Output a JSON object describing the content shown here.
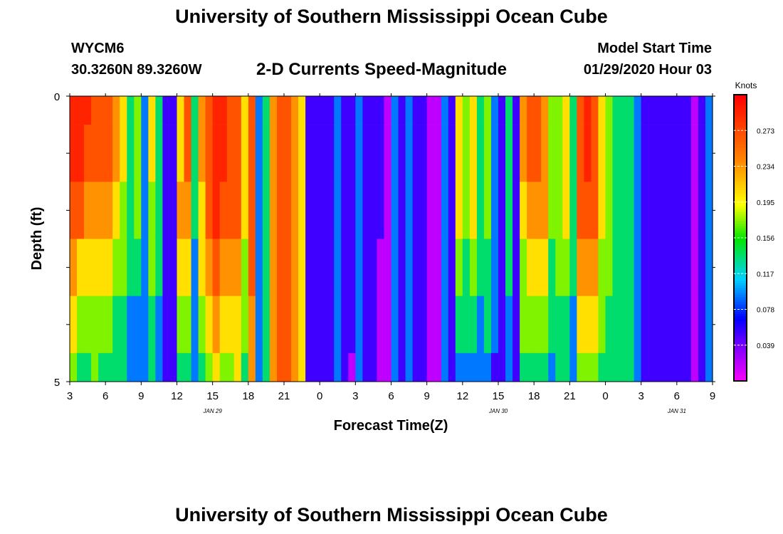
{
  "header": {
    "title": "University of Southern Mississippi Ocean Cube",
    "station": "WYCM6",
    "coords": "30.3260N 89.3260W",
    "subtitle": "2-D Currents Speed-Magnitude",
    "model_start_label": "Model Start Time",
    "model_start_value": "01/29/2020 Hour 03"
  },
  "footer": {
    "title": "University of Southern Mississippi Ocean Cube"
  },
  "chart_data": {
    "type": "heatmap",
    "title": "2-D Currents Speed-Magnitude",
    "xlabel": "Forecast Time(Z)",
    "ylabel": "Depth (ft)",
    "x_tick_labels": [
      "3",
      "6",
      "9",
      "12",
      "15",
      "18",
      "21",
      "0",
      "3",
      "6",
      "9",
      "12",
      "15",
      "18",
      "21",
      "0",
      "3",
      "6",
      "9"
    ],
    "date_labels": [
      "JAN 29",
      "JAN 30",
      "JAN 31"
    ],
    "y_tick_labels": [
      "0",
      "5"
    ],
    "ylim": [
      0,
      5
    ],
    "x_hours": [
      3,
      57
    ],
    "colorbar": {
      "label": "Knots",
      "tick_labels": [
        "0.273",
        "0.234",
        "0.195",
        "0.156",
        "0.117",
        "0.078",
        "0.039"
      ],
      "range": [
        0.0,
        0.312
      ]
    },
    "depths_ft": [
      0,
      0.5,
      1.5,
      2.5,
      3.5,
      4.5
    ],
    "column_levels": [
      [
        9,
        8,
        9,
        8,
        8,
        7,
        7,
        6,
        6,
        5,
        5,
        4
      ],
      [
        9,
        8,
        9,
        8,
        8,
        7,
        6,
        5,
        5,
        4,
        4,
        3
      ],
      [
        9,
        8,
        8,
        7,
        7,
        6,
        6,
        5,
        5,
        4,
        4,
        3
      ],
      [
        8,
        8,
        8,
        7,
        7,
        7,
        6,
        6,
        5,
        5,
        5,
        4
      ],
      [
        8,
        8,
        8,
        7,
        7,
        6,
        6,
        5,
        5,
        4,
        4,
        3
      ],
      [
        8,
        8,
        8,
        7,
        7,
        6,
        6,
        5,
        5,
        4,
        4,
        3
      ],
      [
        7,
        7,
        7,
        6,
        6,
        6,
        5,
        5,
        4,
        4,
        4,
        3
      ],
      [
        6,
        6,
        6,
        5,
        5,
        5,
        5,
        5,
        4,
        4,
        4,
        3
      ],
      [
        4,
        4,
        4,
        4,
        4,
        4,
        4,
        4,
        3,
        3,
        3,
        3
      ],
      [
        5,
        5,
        5,
        5,
        5,
        4,
        4,
        4,
        3,
        3,
        3,
        3
      ],
      [
        3,
        3,
        3,
        3,
        3,
        3,
        3,
        3,
        3,
        3,
        3,
        3
      ],
      [
        6,
        6,
        6,
        5,
        5,
        5,
        5,
        5,
        4,
        4,
        4,
        3
      ],
      [
        4,
        4,
        4,
        4,
        4,
        4,
        4,
        4,
        3,
        3,
        3,
        3
      ],
      [
        2,
        2,
        2,
        2,
        2,
        2,
        2,
        2,
        2,
        2,
        2,
        2
      ],
      [
        2,
        2,
        2,
        2,
        2,
        2,
        2,
        2,
        2,
        2,
        2,
        2
      ],
      [
        6,
        6,
        6,
        7,
        7,
        6,
        6,
        5,
        5,
        4,
        4,
        3
      ],
      [
        8,
        8,
        8,
        7,
        7,
        6,
        6,
        5,
        5,
        4,
        4,
        3
      ],
      [
        4,
        4,
        4,
        4,
        4,
        4,
        3,
        3,
        3,
        3,
        3,
        3
      ],
      [
        7,
        7,
        7,
        7,
        6,
        6,
        6,
        5,
        5,
        5,
        4,
        3
      ],
      [
        8,
        8,
        8,
        8,
        8,
        7,
        7,
        7,
        6,
        6,
        5,
        4
      ],
      [
        9,
        9,
        9,
        9,
        9,
        8,
        8,
        7,
        7,
        6,
        6,
        5
      ],
      [
        9,
        9,
        9,
        8,
        8,
        8,
        7,
        7,
        6,
        6,
        5,
        4
      ],
      [
        8,
        8,
        8,
        8,
        8,
        8,
        7,
        7,
        6,
        6,
        5,
        4
      ],
      [
        8,
        8,
        8,
        8,
        8,
        8,
        7,
        7,
        6,
        6,
        6,
        5
      ],
      [
        6,
        6,
        6,
        6,
        6,
        6,
        5,
        5,
        5,
        5,
        4,
        4
      ],
      [
        8,
        8,
        8,
        8,
        8,
        8,
        8,
        8,
        7,
        7,
        7,
        6
      ],
      [
        3,
        3,
        3,
        3,
        3,
        3,
        3,
        3,
        3,
        3,
        3,
        3
      ],
      [
        4,
        4,
        4,
        4,
        4,
        4,
        4,
        4,
        4,
        4,
        4,
        4
      ],
      [
        7,
        7,
        7,
        7,
        7,
        7,
        7,
        7,
        7,
        7,
        7,
        7
      ],
      [
        8,
        8,
        8,
        8,
        8,
        8,
        8,
        8,
        8,
        8,
        8,
        8
      ],
      [
        8,
        8,
        8,
        8,
        8,
        8,
        8,
        8,
        8,
        8,
        8,
        8
      ],
      [
        7,
        7,
        7,
        7,
        7,
        7,
        7,
        7,
        7,
        7,
        7,
        7
      ],
      [
        6,
        6,
        6,
        6,
        6,
        6,
        6,
        6,
        6,
        6,
        6,
        6
      ],
      [
        2,
        2,
        2,
        2,
        2,
        2,
        2,
        2,
        2,
        2,
        2,
        2
      ],
      [
        2,
        2,
        2,
        2,
        2,
        2,
        2,
        2,
        2,
        2,
        2,
        2
      ],
      [
        2,
        2,
        2,
        2,
        2,
        2,
        2,
        2,
        2,
        2,
        2,
        2
      ],
      [
        2,
        2,
        2,
        2,
        2,
        2,
        2,
        2,
        2,
        2,
        2,
        2
      ],
      [
        3,
        3,
        3,
        3,
        3,
        3,
        3,
        3,
        3,
        3,
        3,
        3
      ],
      [
        2,
        2,
        2,
        2,
        2,
        2,
        2,
        2,
        2,
        2,
        2,
        2
      ],
      [
        2,
        2,
        2,
        2,
        2,
        2,
        2,
        2,
        2,
        2,
        1,
        1
      ],
      [
        3,
        3,
        3,
        3,
        3,
        3,
        3,
        3,
        3,
        3,
        3,
        3
      ],
      [
        2,
        2,
        2,
        2,
        2,
        2,
        2,
        2,
        2,
        2,
        2,
        2
      ],
      [
        2,
        2,
        2,
        2,
        2,
        2,
        2,
        2,
        2,
        2,
        2,
        2
      ],
      [
        2,
        2,
        2,
        2,
        2,
        1,
        1,
        1,
        1,
        1,
        1,
        1
      ],
      [
        1,
        1,
        1,
        1,
        1,
        1,
        1,
        1,
        1,
        1,
        1,
        1
      ],
      [
        3,
        3,
        3,
        3,
        3,
        3,
        3,
        3,
        3,
        3,
        3,
        3
      ],
      [
        2,
        2,
        2,
        2,
        2,
        2,
        2,
        2,
        2,
        2,
        2,
        2
      ],
      [
        3,
        3,
        3,
        3,
        3,
        3,
        3,
        3,
        3,
        3,
        3,
        3
      ],
      [
        2,
        2,
        2,
        2,
        2,
        2,
        2,
        2,
        2,
        2,
        2,
        2
      ],
      [
        2,
        2,
        2,
        2,
        2,
        2,
        2,
        2,
        2,
        2,
        2,
        2
      ],
      [
        1,
        1,
        1,
        1,
        1,
        1,
        1,
        1,
        1,
        1,
        1,
        1
      ],
      [
        1,
        1,
        1,
        1,
        1,
        1,
        1,
        1,
        1,
        1,
        1,
        1
      ],
      [
        3,
        3,
        3,
        3,
        3,
        3,
        3,
        3,
        3,
        3,
        3,
        3
      ],
      [
        2,
        2,
        2,
        2,
        2,
        2,
        2,
        2,
        2,
        2,
        2,
        2
      ],
      [
        6,
        6,
        6,
        6,
        6,
        5,
        5,
        4,
        4,
        3,
        3,
        2
      ],
      [
        5,
        5,
        5,
        5,
        5,
        5,
        4,
        4,
        4,
        3,
        3,
        2
      ],
      [
        6,
        6,
        6,
        6,
        6,
        5,
        5,
        4,
        4,
        3,
        3,
        2
      ],
      [
        4,
        4,
        4,
        4,
        4,
        4,
        4,
        3,
        3,
        3,
        3,
        2
      ],
      [
        5,
        5,
        5,
        5,
        5,
        5,
        4,
        4,
        4,
        3,
        3,
        2
      ],
      [
        3,
        3,
        3,
        3,
        3,
        3,
        3,
        3,
        3,
        2,
        2,
        2
      ],
      [
        2,
        2,
        2,
        2,
        2,
        2,
        2,
        2,
        2,
        2,
        2,
        2
      ],
      [
        4,
        4,
        4,
        4,
        4,
        4,
        4,
        3,
        3,
        3,
        3,
        3
      ],
      [
        2,
        2,
        2,
        2,
        2,
        2,
        2,
        2,
        2,
        2,
        2,
        2
      ],
      [
        7,
        7,
        7,
        6,
        6,
        6,
        5,
        5,
        5,
        4,
        4,
        3
      ],
      [
        8,
        8,
        8,
        7,
        7,
        7,
        6,
        6,
        5,
        5,
        4,
        4
      ],
      [
        8,
        8,
        8,
        7,
        7,
        7,
        6,
        6,
        5,
        5,
        4,
        4
      ],
      [
        7,
        7,
        7,
        7,
        7,
        7,
        6,
        6,
        5,
        5,
        4,
        4
      ],
      [
        5,
        5,
        5,
        5,
        5,
        5,
        4,
        4,
        4,
        4,
        3,
        3
      ],
      [
        5,
        5,
        5,
        5,
        5,
        5,
        5,
        5,
        4,
        4,
        4,
        3
      ],
      [
        6,
        6,
        6,
        6,
        6,
        6,
        5,
        5,
        4,
        4,
        4,
        3
      ],
      [
        4,
        4,
        4,
        4,
        4,
        4,
        4,
        4,
        3,
        3,
        3,
        2
      ],
      [
        8,
        8,
        8,
        8,
        8,
        7,
        7,
        6,
        6,
        5,
        5,
        4
      ],
      [
        9,
        9,
        9,
        9,
        8,
        8,
        7,
        7,
        6,
        6,
        5,
        4
      ],
      [
        8,
        8,
        8,
        8,
        8,
        7,
        7,
        6,
        6,
        5,
        5,
        4
      ],
      [
        6,
        6,
        6,
        6,
        6,
        6,
        5,
        5,
        5,
        4,
        4,
        4
      ],
      [
        5,
        5,
        5,
        5,
        5,
        5,
        5,
        5,
        4,
        4,
        4,
        4
      ],
      [
        4,
        4,
        4,
        4,
        4,
        4,
        4,
        4,
        4,
        4,
        4,
        4
      ],
      [
        4,
        4,
        4,
        4,
        4,
        4,
        4,
        4,
        4,
        4,
        4,
        4
      ],
      [
        4,
        4,
        4,
        4,
        4,
        4,
        4,
        4,
        4,
        4,
        4,
        4
      ],
      [
        3,
        3,
        3,
        3,
        3,
        3,
        3,
        3,
        3,
        3,
        3,
        3
      ],
      [
        2,
        2,
        2,
        2,
        2,
        2,
        2,
        2,
        2,
        2,
        2,
        2
      ],
      [
        2,
        2,
        2,
        2,
        2,
        2,
        2,
        2,
        2,
        2,
        2,
        2
      ],
      [
        2,
        2,
        2,
        2,
        2,
        2,
        2,
        2,
        2,
        2,
        2,
        2
      ],
      [
        2,
        2,
        2,
        2,
        2,
        2,
        2,
        2,
        2,
        2,
        2,
        2
      ],
      [
        2,
        2,
        2,
        2,
        2,
        2,
        2,
        2,
        2,
        2,
        2,
        2
      ],
      [
        2,
        2,
        2,
        2,
        2,
        2,
        2,
        2,
        2,
        2,
        2,
        2
      ],
      [
        2,
        2,
        2,
        2,
        2,
        2,
        2,
        2,
        2,
        2,
        2,
        2
      ],
      [
        1,
        1,
        1,
        1,
        1,
        1,
        1,
        1,
        1,
        1,
        1,
        1
      ],
      [
        2,
        2,
        2,
        2,
        2,
        2,
        2,
        2,
        2,
        2,
        2,
        2
      ],
      [
        3,
        3,
        3,
        3,
        3,
        3,
        3,
        3,
        3,
        3,
        3,
        3
      ]
    ]
  }
}
